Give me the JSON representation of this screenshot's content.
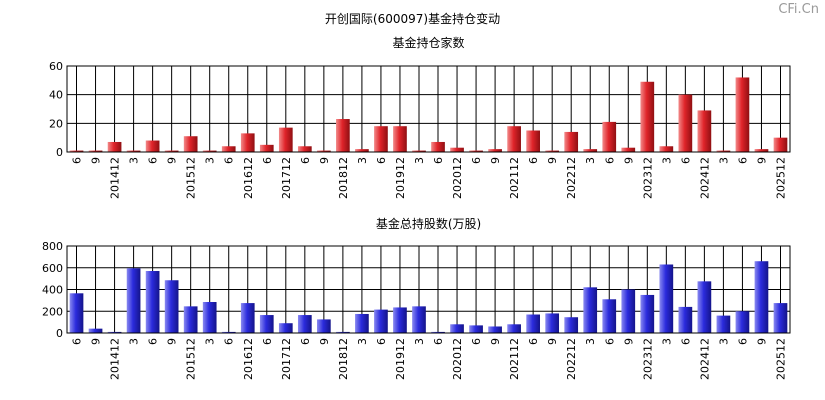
{
  "page_title": "开创国际(600097)基金持仓变动",
  "watermark": "CFi.Cn",
  "categories": [
    "6",
    "9",
    "201412",
    "3",
    "6",
    "9",
    "201512",
    "3",
    "6",
    "201612",
    "6",
    "201712",
    "6",
    "9",
    "201812",
    "3",
    "6",
    "201912",
    "3",
    "6",
    "202012",
    "6",
    "9",
    "202112",
    "6",
    "9",
    "202212",
    "3",
    "6",
    "9",
    "202312",
    "3",
    "6",
    "202412",
    "3",
    "6",
    "9",
    "202512"
  ],
  "colors": {
    "top": "#e0242a",
    "bottom": "#2b2bdd"
  },
  "chart_data": [
    {
      "type": "bar",
      "title": "基金持仓家数",
      "xlabel": "",
      "ylabel": "",
      "ylim": [
        0,
        60
      ],
      "yticks": [
        0,
        20,
        40,
        60
      ],
      "grid": true,
      "values": [
        1,
        1,
        7,
        1,
        8,
        1,
        11,
        1,
        4,
        13,
        5,
        17,
        4,
        1,
        23,
        2,
        18,
        18,
        1,
        7,
        3,
        1,
        2,
        18,
        15,
        1,
        14,
        2,
        21,
        3,
        49,
        4,
        40,
        29,
        1,
        52,
        2,
        10
      ]
    },
    {
      "type": "bar",
      "title": "基金总持股数(万股)",
      "xlabel": "",
      "ylabel": "",
      "ylim": [
        0,
        800
      ],
      "yticks": [
        0,
        200,
        400,
        600,
        800
      ],
      "grid": true,
      "values": [
        365,
        40,
        10,
        595,
        570,
        485,
        245,
        285,
        10,
        275,
        165,
        90,
        165,
        125,
        10,
        175,
        215,
        235,
        245,
        10,
        80,
        70,
        60,
        80,
        170,
        180,
        145,
        420,
        310,
        400,
        350,
        630,
        240,
        475,
        160,
        200,
        660,
        275
      ]
    }
  ]
}
